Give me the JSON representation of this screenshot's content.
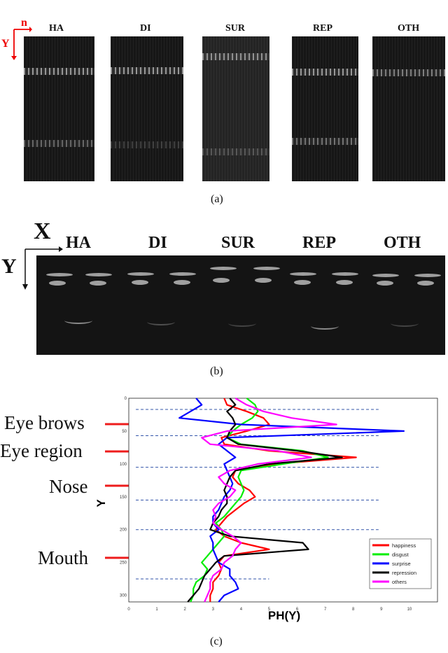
{
  "panel_a": {
    "axis_n": "n",
    "axis_y": "Y",
    "titles": [
      "HA",
      "DI",
      "SUR",
      "REP",
      "OTH"
    ],
    "caption": "(a)"
  },
  "panel_b": {
    "axis_x": "X",
    "axis_y": "Y",
    "titles": [
      "HA",
      "DI",
      "SUR",
      "REP",
      "OTH"
    ],
    "caption": "(b)"
  },
  "panel_c": {
    "caption": "(c)",
    "features": [
      "Eye brows",
      "Eye region",
      "Nose",
      "Mouth"
    ],
    "arrow_color": "#ee1c1c"
  },
  "chart_data": {
    "type": "line",
    "orientation": "vertical-profile",
    "xlabel": "PH(Y)",
    "ylabel": "Y",
    "xlim": [
      0,
      11
    ],
    "ylim": [
      0,
      310
    ],
    "y_inverted": true,
    "xticks": [
      "0",
      "1",
      "2",
      "3",
      "4",
      "5",
      "6",
      "7",
      "8",
      "9",
      "10"
    ],
    "yticks": [
      "0",
      "50",
      "100",
      "150",
      "200",
      "250",
      "300"
    ],
    "legend_position": "bottom-right",
    "region_lines_y": [
      17,
      57,
      105,
      155,
      200,
      275
    ],
    "y": [
      0,
      10,
      20,
      30,
      40,
      50,
      60,
      70,
      80,
      90,
      100,
      110,
      120,
      130,
      140,
      150,
      160,
      170,
      180,
      190,
      200,
      210,
      220,
      230,
      240,
      250,
      260,
      270,
      280,
      290,
      300,
      310
    ],
    "series": [
      {
        "name": "happiness",
        "color": "#ff0000",
        "values": [
          3.4,
          3.5,
          4.2,
          4.8,
          5.0,
          4.2,
          3.3,
          3.4,
          5.0,
          8.1,
          5.2,
          3.8,
          3.7,
          3.9,
          4.3,
          4.5,
          4.1,
          3.8,
          3.5,
          3.3,
          3.1,
          3.4,
          4.0,
          5.0,
          3.4,
          3.2,
          3.3,
          3.2,
          3.0,
          3.0,
          2.9,
          2.9
        ]
      },
      {
        "name": "disgust",
        "color": "#00ee00",
        "values": [
          4.2,
          4.5,
          4.6,
          4.4,
          4.0,
          3.7,
          3.5,
          4.0,
          6.2,
          7.1,
          5.5,
          4.0,
          3.9,
          4.0,
          4.1,
          4.0,
          3.8,
          3.6,
          3.4,
          3.1,
          3.3,
          3.4,
          3.2,
          3.0,
          2.8,
          2.6,
          2.8,
          2.7,
          2.4,
          2.3,
          2.3,
          2.2
        ]
      },
      {
        "name": "surprise",
        "color": "#0000ff",
        "values": [
          2.4,
          2.6,
          2.2,
          1.8,
          4.0,
          9.8,
          3.5,
          3.2,
          3.5,
          3.8,
          3.4,
          3.5,
          3.6,
          3.7,
          3.6,
          3.4,
          3.3,
          3.2,
          3.0,
          3.0,
          3.2,
          2.9,
          3.0,
          3.0,
          3.1,
          3.2,
          3.6,
          3.6,
          3.8,
          3.9,
          3.4,
          3.2
        ]
      },
      {
        "name": "repression",
        "color": "#000000",
        "values": [
          3.6,
          3.8,
          3.5,
          3.7,
          3.8,
          3.6,
          3.5,
          3.9,
          6.0,
          7.6,
          5.0,
          3.8,
          3.6,
          3.5,
          3.4,
          3.5,
          3.5,
          3.3,
          3.2,
          3.0,
          2.9,
          3.6,
          6.2,
          6.4,
          3.4,
          3.1,
          2.9,
          2.7,
          2.6,
          2.5,
          2.3,
          2.1
        ]
      },
      {
        "name": "others",
        "color": "#ff00ff",
        "values": [
          3.8,
          4.2,
          4.8,
          5.8,
          7.4,
          3.5,
          2.6,
          2.9,
          5.3,
          6.5,
          4.6,
          3.6,
          3.2,
          3.4,
          3.8,
          3.6,
          3.2,
          3.0,
          3.1,
          3.0,
          3.3,
          3.7,
          4.0,
          3.8,
          3.7,
          3.4,
          3.3,
          3.0,
          2.9,
          2.9,
          2.8,
          2.7
        ]
      }
    ]
  }
}
